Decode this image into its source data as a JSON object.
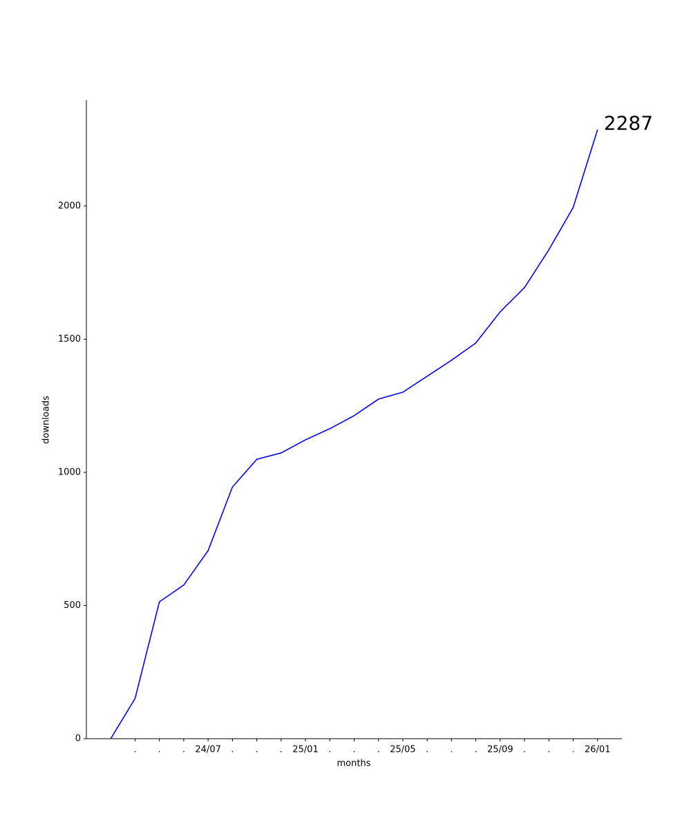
{
  "chart_data": {
    "type": "line",
    "x_label": "months",
    "y_label": "downloads",
    "categories": [
      null,
      ".",
      ".",
      ".",
      "24/07",
      ".",
      ".",
      ".",
      "25/01",
      ".",
      ".",
      ".",
      "25/05",
      ".",
      ".",
      ".",
      "25/09",
      ".",
      ".",
      ".",
      "26/01"
    ],
    "values": [
      0,
      151,
      514,
      577,
      706,
      945,
      1049,
      1073,
      1122,
      1164,
      1213,
      1275,
      1301,
      1361,
      1421,
      1486,
      1603,
      1694,
      1836,
      1995,
      2287
    ],
    "end_label": "2287",
    "color": "#0000ff",
    "ylim": [
      0,
      2397
    ],
    "yticks": [
      0,
      500,
      1000,
      1500,
      2000
    ],
    "grid": false
  }
}
